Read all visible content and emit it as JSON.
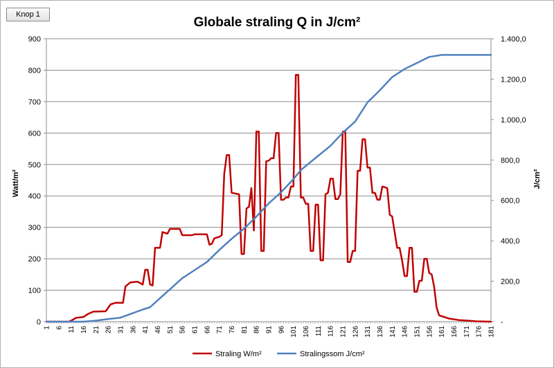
{
  "button": {
    "label": "Knop 1"
  },
  "chart_data": {
    "type": "line",
    "title": "Globale straling Q in J/cm²",
    "xlabel": "",
    "ylabel": "Watt/m²",
    "y2label": "J/cm²",
    "ylim": [
      0,
      900
    ],
    "y2lim": [
      0,
      1400
    ],
    "yticks": [
      "0",
      "100",
      "200",
      "300",
      "400",
      "500",
      "600",
      "700",
      "800",
      "900"
    ],
    "y2ticks": [
      "-",
      "200,0",
      "400,0",
      "600,0",
      "800,0",
      "1.000,0",
      "1.200,0",
      "1.400,0"
    ],
    "xticks": [
      "1",
      "6",
      "11",
      "16",
      "21",
      "26",
      "31",
      "36",
      "41",
      "46",
      "51",
      "56",
      "61",
      "66",
      "71",
      "76",
      "81",
      "86",
      "91",
      "96",
      "101",
      "106",
      "111",
      "116",
      "121",
      "126",
      "131",
      "136",
      "141",
      "146",
      "151",
      "156",
      "161",
      "166",
      "171",
      "176",
      "181"
    ],
    "grid": true,
    "legend_position": "bottom",
    "x_range": [
      1,
      181
    ],
    "series": [
      {
        "name": "Straling W/m²",
        "axis": "left",
        "color": "#c00000",
        "points": [
          [
            1,
            0
          ],
          [
            10,
            0
          ],
          [
            11,
            3
          ],
          [
            13,
            12
          ],
          [
            16,
            15
          ],
          [
            18,
            25
          ],
          [
            20,
            32
          ],
          [
            25,
            33
          ],
          [
            27,
            55
          ],
          [
            29,
            60
          ],
          [
            32,
            60
          ],
          [
            33,
            112
          ],
          [
            35,
            125
          ],
          [
            38,
            127
          ],
          [
            40,
            118
          ],
          [
            41,
            165
          ],
          [
            42,
            165
          ],
          [
            43,
            118
          ],
          [
            44,
            115
          ],
          [
            45,
            235
          ],
          [
            47,
            235
          ],
          [
            48,
            285
          ],
          [
            50,
            280
          ],
          [
            51,
            295
          ],
          [
            55,
            295
          ],
          [
            56,
            275
          ],
          [
            60,
            275
          ],
          [
            61,
            278
          ],
          [
            66,
            278
          ],
          [
            67,
            245
          ],
          [
            68,
            248
          ],
          [
            69,
            265
          ],
          [
            71,
            270
          ],
          [
            72,
            275
          ],
          [
            73,
            470
          ],
          [
            74,
            530
          ],
          [
            75,
            530
          ],
          [
            76,
            410
          ],
          [
            79,
            405
          ],
          [
            80,
            215
          ],
          [
            81,
            215
          ],
          [
            82,
            360
          ],
          [
            83,
            365
          ],
          [
            84,
            425
          ],
          [
            85,
            290
          ],
          [
            86,
            605
          ],
          [
            87,
            605
          ],
          [
            88,
            225
          ],
          [
            89,
            225
          ],
          [
            90,
            510
          ],
          [
            91,
            512
          ],
          [
            92,
            520
          ],
          [
            93,
            520
          ],
          [
            94,
            600
          ],
          [
            95,
            600
          ],
          [
            96,
            388
          ],
          [
            97,
            388
          ],
          [
            98,
            395
          ],
          [
            99,
            395
          ],
          [
            100,
            430
          ],
          [
            101,
            430
          ],
          [
            102,
            785
          ],
          [
            103,
            785
          ],
          [
            104,
            395
          ],
          [
            105,
            395
          ],
          [
            106,
            375
          ],
          [
            107,
            375
          ],
          [
            108,
            225
          ],
          [
            109,
            225
          ],
          [
            110,
            372
          ],
          [
            111,
            372
          ],
          [
            112,
            195
          ],
          [
            113,
            195
          ],
          [
            114,
            405
          ],
          [
            115,
            410
          ],
          [
            116,
            455
          ],
          [
            117,
            455
          ],
          [
            118,
            390
          ],
          [
            119,
            390
          ],
          [
            120,
            405
          ],
          [
            121,
            605
          ],
          [
            122,
            605
          ],
          [
            123,
            190
          ],
          [
            124,
            190
          ],
          [
            125,
            225
          ],
          [
            126,
            225
          ],
          [
            127,
            480
          ],
          [
            128,
            480
          ],
          [
            129,
            580
          ],
          [
            130,
            580
          ],
          [
            131,
            490
          ],
          [
            132,
            490
          ],
          [
            133,
            410
          ],
          [
            134,
            410
          ],
          [
            135,
            388
          ],
          [
            136,
            388
          ],
          [
            137,
            430
          ],
          [
            139,
            425
          ],
          [
            140,
            340
          ],
          [
            141,
            335
          ],
          [
            142,
            285
          ],
          [
            143,
            235
          ],
          [
            144,
            235
          ],
          [
            145,
            195
          ],
          [
            146,
            145
          ],
          [
            147,
            145
          ],
          [
            148,
            235
          ],
          [
            149,
            235
          ],
          [
            150,
            95
          ],
          [
            151,
            95
          ],
          [
            152,
            130
          ],
          [
            153,
            130
          ],
          [
            154,
            200
          ],
          [
            155,
            200
          ],
          [
            156,
            155
          ],
          [
            157,
            150
          ],
          [
            158,
            110
          ],
          [
            159,
            45
          ],
          [
            160,
            20
          ],
          [
            162,
            15
          ],
          [
            164,
            10
          ],
          [
            168,
            5
          ],
          [
            172,
            3
          ],
          [
            175,
            1
          ],
          [
            181,
            0
          ]
        ]
      },
      {
        "name": "Stralingssom J/cm²",
        "axis": "right",
        "color": "#4f81bd",
        "points": [
          [
            1,
            0
          ],
          [
            16,
            0
          ],
          [
            21,
            5
          ],
          [
            26,
            13
          ],
          [
            31,
            20
          ],
          [
            36,
            42
          ],
          [
            40,
            60
          ],
          [
            43,
            72
          ],
          [
            46,
            105
          ],
          [
            51,
            160
          ],
          [
            56,
            215
          ],
          [
            61,
            255
          ],
          [
            66,
            295
          ],
          [
            71,
            355
          ],
          [
            76,
            410
          ],
          [
            81,
            460
          ],
          [
            86,
            520
          ],
          [
            91,
            585
          ],
          [
            96,
            640
          ],
          [
            101,
            705
          ],
          [
            104,
            750
          ],
          [
            106,
            770
          ],
          [
            111,
            820
          ],
          [
            116,
            870
          ],
          [
            121,
            935
          ],
          [
            126,
            990
          ],
          [
            131,
            1085
          ],
          [
            136,
            1145
          ],
          [
            141,
            1210
          ],
          [
            146,
            1250
          ],
          [
            151,
            1280
          ],
          [
            156,
            1310
          ],
          [
            161,
            1320
          ],
          [
            181,
            1320
          ]
        ]
      }
    ]
  }
}
